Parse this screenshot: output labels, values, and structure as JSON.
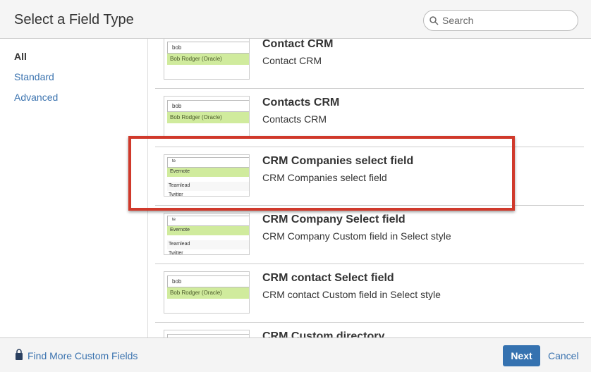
{
  "header": {
    "title": "Select a Field Type",
    "search_placeholder": "Search"
  },
  "sidebar": {
    "items": [
      {
        "label": "All",
        "active": true
      },
      {
        "label": "Standard"
      },
      {
        "label": "Advanced"
      }
    ]
  },
  "items": [
    {
      "title": "Contact CRM",
      "description": "Contact CRM",
      "preview": {
        "type": "user",
        "input": "bob",
        "selected": "Bob Rodger (Oracle)"
      }
    },
    {
      "title": "Contacts CRM",
      "description": "Contacts CRM",
      "preview": {
        "type": "user",
        "input": "bob",
        "selected": "Bob Rodger (Oracle)"
      }
    },
    {
      "title": "CRM Companies select field",
      "description": "CRM Companies select field",
      "highlighted": true,
      "preview": {
        "type": "select",
        "input": "te",
        "selected": "Evernote",
        "rows": [
          "Teamlead",
          "Twitter"
        ]
      }
    },
    {
      "title": "CRM Company Select field",
      "description": "CRM Company Custom field in Select style",
      "preview": {
        "type": "select",
        "input": "te",
        "selected": "Evernote",
        "rows": [
          "Teamlead",
          "Twitter"
        ]
      }
    },
    {
      "title": "CRM contact Select field",
      "description": "CRM contact Custom field in Select style",
      "preview": {
        "type": "user",
        "input": "bob",
        "selected": "Bob Rodger (Oracle)"
      }
    },
    {
      "title": "CRM Custom directory",
      "description": "",
      "preview": {
        "type": "user",
        "input": "",
        "selected": ""
      }
    }
  ],
  "footer": {
    "find_more": "Find More Custom Fields",
    "next": "Next",
    "cancel": "Cancel"
  },
  "colors": {
    "accent": "#3572b0",
    "highlight_border": "#d0392b",
    "selected_row": "#d0eb9d"
  }
}
